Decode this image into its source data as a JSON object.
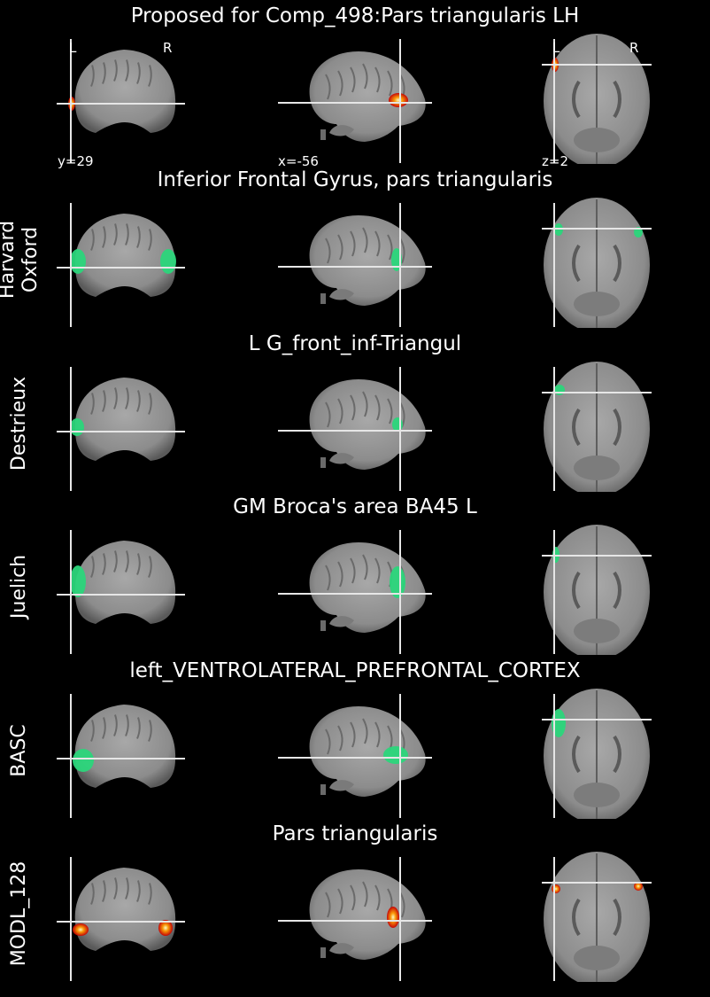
{
  "figure": {
    "title": "Proposed for Comp_498:Pars triangularis LH",
    "orientation_labels": {
      "left": "L",
      "right": "R"
    },
    "coordinates": {
      "coronal": "y=29",
      "sagittal": "x=-56",
      "axial": "z=2"
    }
  },
  "rows": [
    {
      "id": "proposed",
      "title": "",
      "atlas_label": "",
      "overlay": "hot"
    },
    {
      "id": "harvard-oxford",
      "title": "Inferior Frontal Gyrus, pars triangularis",
      "atlas_label": "Harvard\nOxford",
      "overlay": "green"
    },
    {
      "id": "destrieux",
      "title": "L G_front_inf-Triangul",
      "atlas_label": "Destrieux",
      "overlay": "green"
    },
    {
      "id": "juelich",
      "title": "GM Broca's area BA45 L",
      "atlas_label": "Juelich",
      "overlay": "green"
    },
    {
      "id": "basc",
      "title": "left_VENTROLATERAL_PREFRONTAL_CORTEX",
      "atlas_label": "BASC",
      "overlay": "green"
    },
    {
      "id": "modl-128",
      "title": "Pars triangularis",
      "atlas_label": "MODL_128",
      "overlay": "hot"
    }
  ],
  "colors": {
    "background": "#000000",
    "brain_gray": "#8c8c8c",
    "green_overlay": "#2bd67b",
    "hot_overlay_core": "#ffffcc",
    "hot_overlay_mid": "#ff9a00",
    "hot_overlay_edge": "#c80000",
    "crosshair": "#e6e6e6"
  },
  "icons": {
    "coronal": "coronal-brain-slice",
    "sagittal": "sagittal-brain-slice",
    "axial": "axial-brain-slice"
  }
}
